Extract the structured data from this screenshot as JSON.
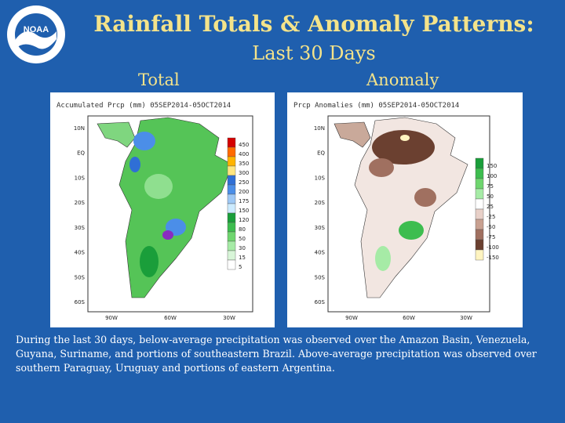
{
  "header": {
    "title": "Rainfall Totals & Anomaly Patterns:",
    "subtitle": "Last 30 Days",
    "logo_text": "NOAA"
  },
  "panels": {
    "total": {
      "label": "Total",
      "map_title": "Accumulated Prcp (mm) 05SEP2014-05OCT2014",
      "legend": [
        "450",
        "400",
        "350",
        "300",
        "250",
        "200",
        "175",
        "150",
        "120",
        "80",
        "50",
        "30",
        "15",
        "5"
      ],
      "legend_colors": [
        "#d40000",
        "#ff6a00",
        "#ffb400",
        "#ffe680",
        "#2f6fd6",
        "#4b8ee8",
        "#9ec8f5",
        "#ccebff",
        "#1a9e3a",
        "#3dbd4f",
        "#6fd66f",
        "#a6eba6",
        "#d8f5d8",
        "#ffffff"
      ]
    },
    "anomaly": {
      "label": "Anomaly",
      "map_title": "Prcp Anomalies (mm) 05SEP2014-05OCT2014",
      "legend": [
        "150",
        "100",
        "75",
        "50",
        "25",
        "-25",
        "-50",
        "-75",
        "-100",
        "-150"
      ],
      "legend_colors": [
        "#1a9e3a",
        "#3dbd4f",
        "#6fd66f",
        "#a6eba6",
        "#ffffff",
        "#e8d0c8",
        "#c8a090",
        "#a07060",
        "#6b4030",
        "#fff4c0"
      ]
    }
  },
  "axes": {
    "lat": [
      "10N",
      "EQ",
      "10S",
      "20S",
      "30S",
      "40S",
      "50S",
      "60S"
    ],
    "lon": [
      "90W",
      "60W",
      "30W"
    ]
  },
  "caption": "During the last 30 days, below-average precipitation was observed over the Amazon Basin, Venezuela, Guyana, Suriname, and portions of southeastern Brazil.  Above-average precipitation was observed over southern Paraguay, Uruguay and portions of eastern Argentina.",
  "colors": {
    "background": "#1f5fae",
    "title": "#f4e38a"
  }
}
